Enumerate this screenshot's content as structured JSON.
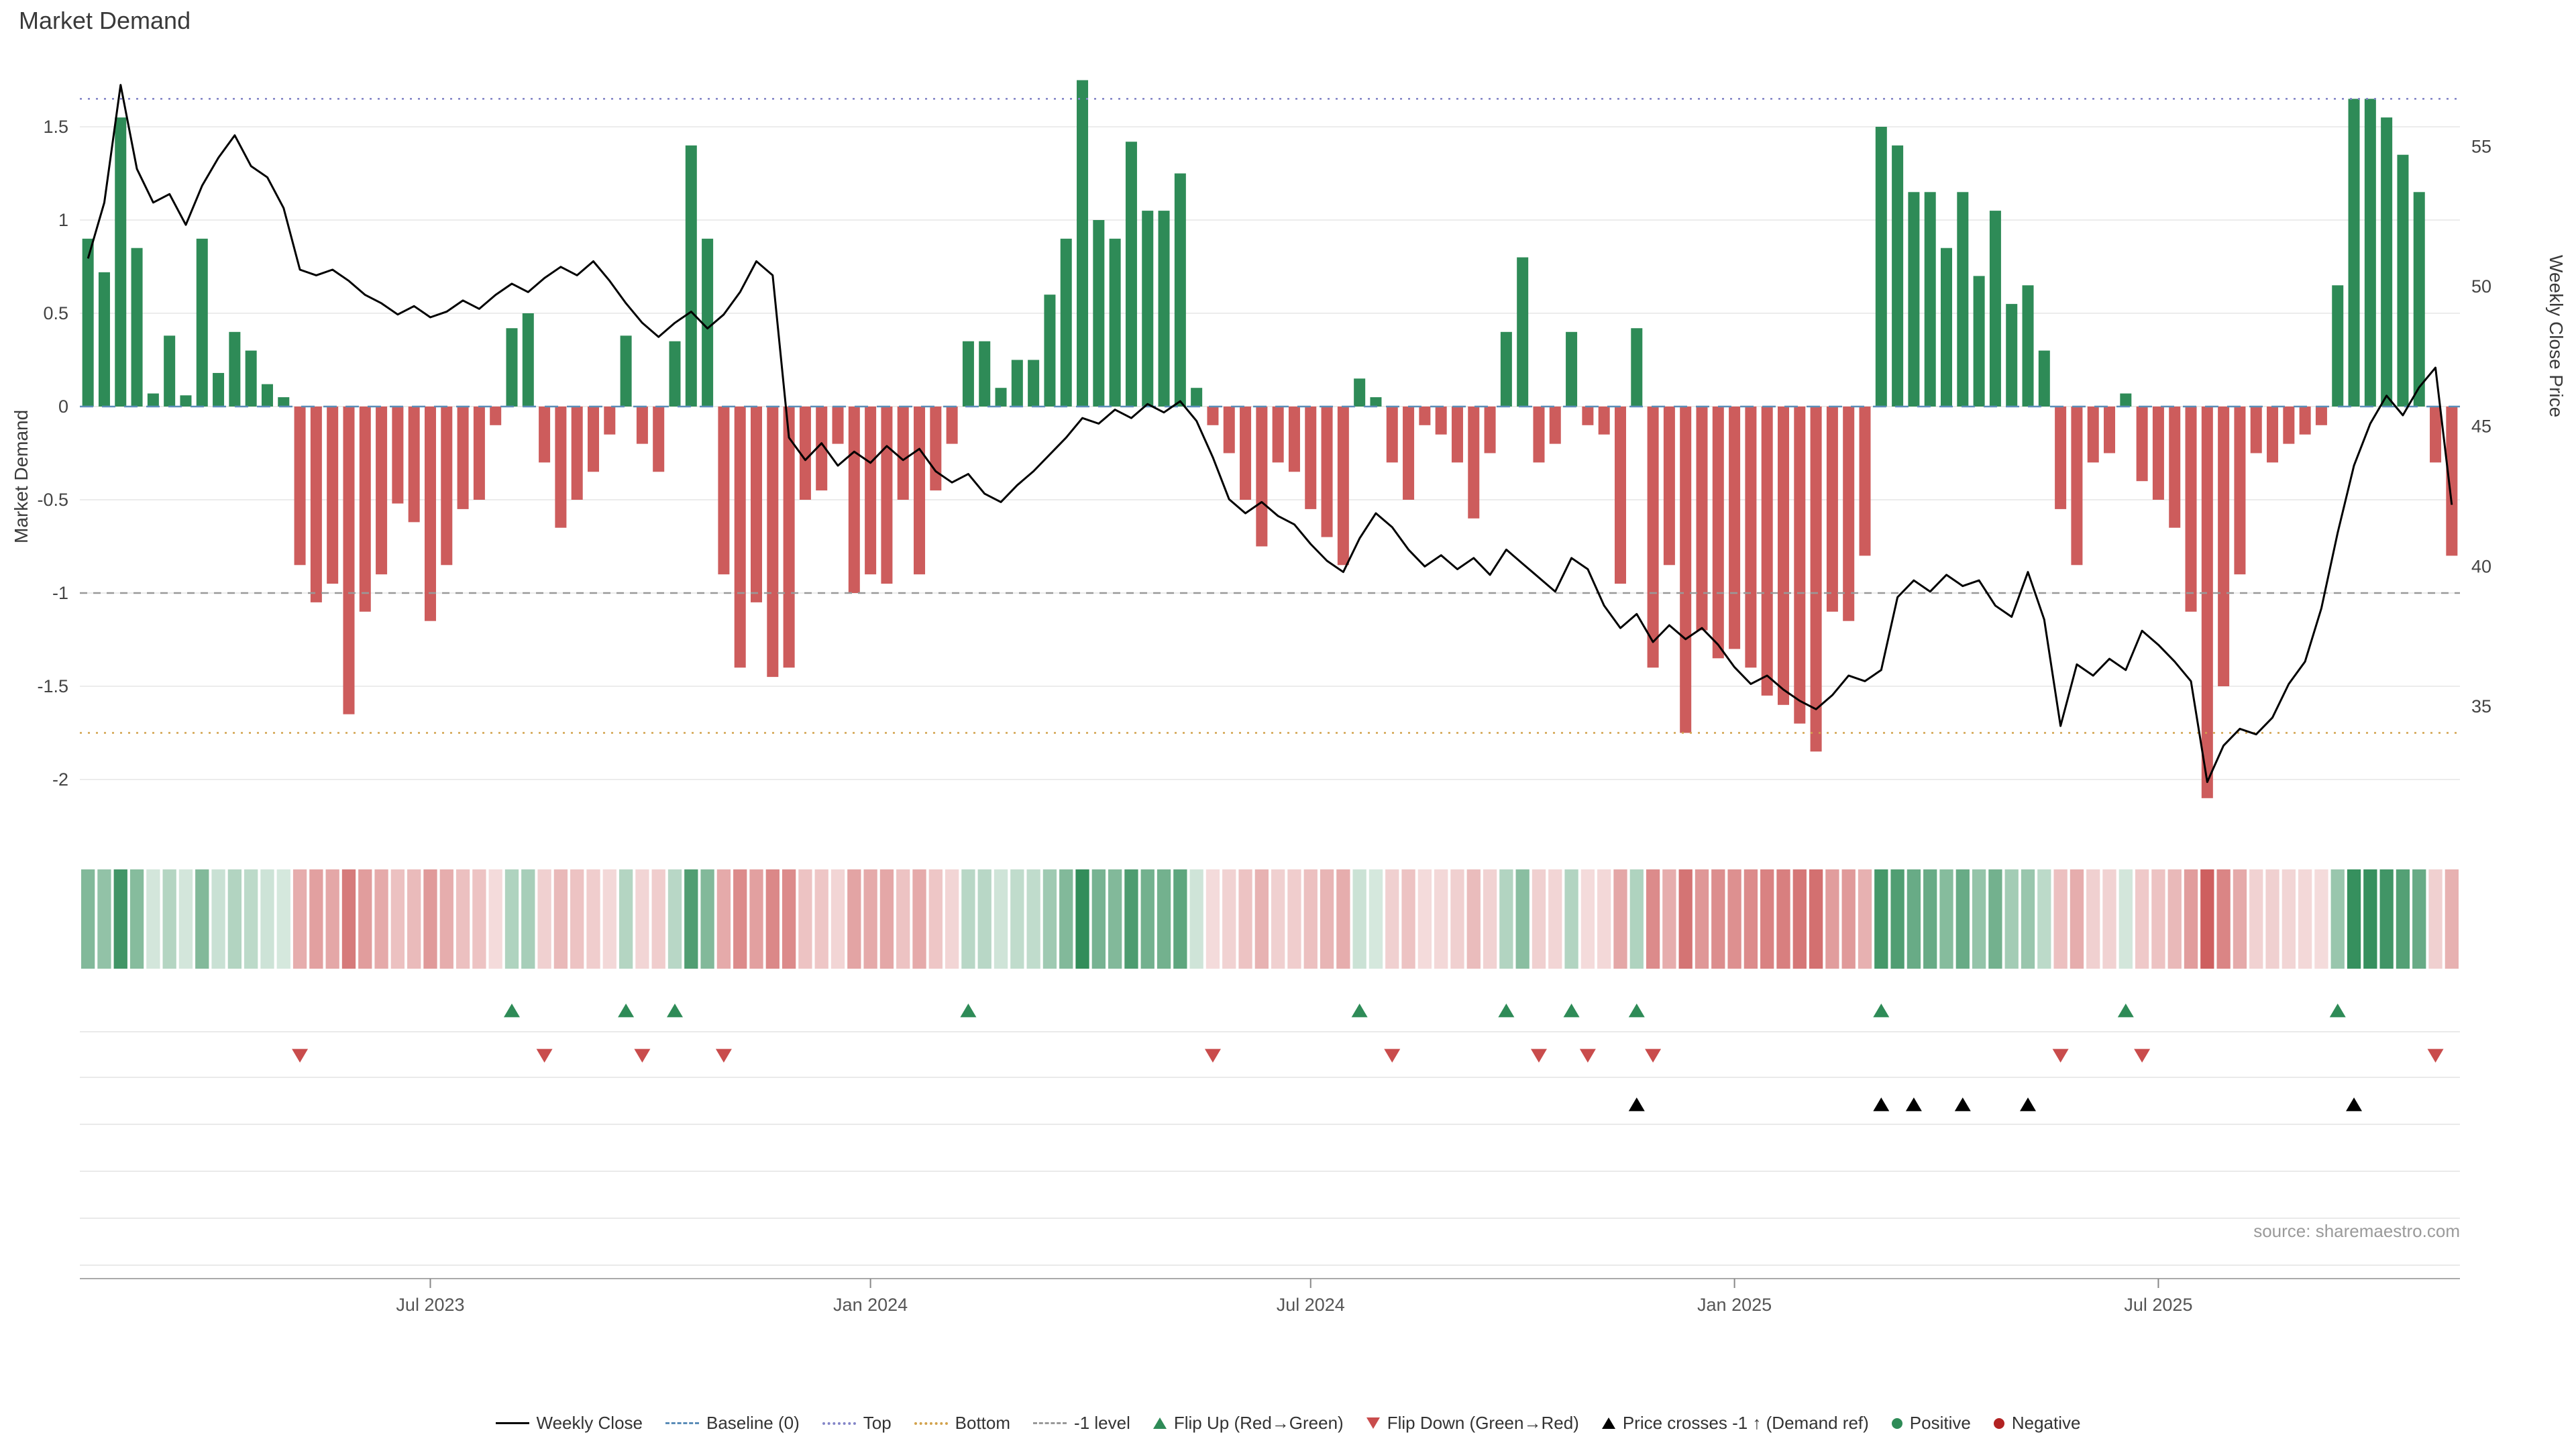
{
  "title": "Market Demand",
  "source": "source: sharemaestro.com",
  "chart_data": {
    "type": "bar",
    "title": "Market Demand",
    "left_axis": {
      "label": "Market Demand",
      "ticks": [
        {
          "label": "1.5",
          "value": 1.5
        },
        {
          "label": "1",
          "value": 1.0
        },
        {
          "label": "0.5",
          "value": 0.5
        },
        {
          "label": "0",
          "value": 0.0
        },
        {
          "label": "-0.5",
          "value": -0.5
        },
        {
          "label": "-1",
          "value": -1.0
        },
        {
          "label": "-1.5",
          "value": -1.5
        },
        {
          "label": "-2",
          "value": -2.0
        }
      ],
      "range": [
        -2.2,
        1.85
      ]
    },
    "right_axis": {
      "label": "Weekly Close Price",
      "ticks": [
        {
          "label": "55",
          "value": 55
        },
        {
          "label": "50",
          "value": 50
        },
        {
          "label": "45",
          "value": 45
        },
        {
          "label": "40",
          "value": 40
        },
        {
          "label": "35",
          "value": 35
        }
      ],
      "range": [
        31.1,
        58.0
      ]
    },
    "x_ticks": [
      {
        "label": "Jul 2023",
        "index": 21
      },
      {
        "label": "Jan 2024",
        "index": 48
      },
      {
        "label": "Jul 2024",
        "index": 75
      },
      {
        "label": "Jan 2025",
        "index": 101
      },
      {
        "label": "Jul 2025",
        "index": 127
      }
    ],
    "reference_lines": [
      {
        "name": "Baseline (0)",
        "value": 0,
        "style": "dashed",
        "color": "#5b8db8"
      },
      {
        "name": "Top",
        "value": 1.65,
        "style": "dotted",
        "color": "#8486c8"
      },
      {
        "name": "Bottom",
        "value": -1.75,
        "style": "dotted",
        "color": "#d2a24c"
      },
      {
        "name": "-1 level",
        "value": -1.0,
        "style": "dashed",
        "color": "#999999"
      }
    ],
    "series": [
      {
        "name": "Market Demand",
        "type": "bar",
        "axis": "left",
        "positive_color": "#2e8b57",
        "negative_color": "#cd5c5c",
        "values": [
          0.9,
          0.72,
          1.55,
          0.85,
          0.07,
          0.38,
          0.06,
          0.9,
          0.18,
          0.4,
          0.3,
          0.12,
          0.05,
          -0.85,
          -1.05,
          -0.95,
          -1.65,
          -1.1,
          -0.9,
          -0.52,
          -0.62,
          -1.15,
          -0.85,
          -0.55,
          -0.5,
          -0.1,
          0.42,
          0.5,
          -0.3,
          -0.65,
          -0.5,
          -0.35,
          -0.15,
          0.38,
          -0.2,
          -0.35,
          0.35,
          1.4,
          0.9,
          -0.9,
          -1.4,
          -1.05,
          -1.45,
          -1.4,
          -0.5,
          -0.45,
          -0.2,
          -1.0,
          -0.9,
          -0.95,
          -0.5,
          -0.9,
          -0.45,
          -0.2,
          0.35,
          0.35,
          0.1,
          0.25,
          0.25,
          0.6,
          0.9,
          1.75,
          1.0,
          0.9,
          1.42,
          1.05,
          1.05,
          1.25,
          0.1,
          -0.1,
          -0.25,
          -0.5,
          -0.75,
          -0.3,
          -0.35,
          -0.55,
          -0.7,
          -0.85,
          0.15,
          0.05,
          -0.3,
          -0.5,
          -0.1,
          -0.15,
          -0.3,
          -0.6,
          -0.25,
          0.4,
          0.8,
          -0.3,
          -0.2,
          0.4,
          -0.1,
          -0.15,
          -0.95,
          0.42,
          -1.4,
          -0.85,
          -1.75,
          -1.2,
          -1.35,
          -1.3,
          -1.4,
          -1.55,
          -1.6,
          -1.7,
          -1.85,
          -1.1,
          -1.15,
          -0.8,
          1.5,
          1.4,
          1.15,
          1.15,
          0.85,
          1.15,
          0.7,
          1.05,
          0.55,
          0.65,
          0.3,
          -0.55,
          -0.85,
          -0.3,
          -0.25,
          0.07,
          -0.4,
          -0.5,
          -0.65,
          -1.1,
          -2.1,
          -1.5,
          -0.9,
          -0.25,
          -0.3,
          -0.2,
          -0.15,
          -0.1,
          0.65,
          1.65,
          1.65,
          1.55,
          1.35,
          1.15,
          -0.3,
          -0.8
        ]
      },
      {
        "name": "Weekly Close",
        "type": "line",
        "axis": "right",
        "color": "#000000",
        "values": [
          51.0,
          53.0,
          57.2,
          54.2,
          53.0,
          53.3,
          52.2,
          53.6,
          54.6,
          55.4,
          54.3,
          53.9,
          52.8,
          50.6,
          50.4,
          50.6,
          50.2,
          49.7,
          49.4,
          49.0,
          49.3,
          48.9,
          49.1,
          49.5,
          49.2,
          49.7,
          50.1,
          49.8,
          50.3,
          50.7,
          50.4,
          50.9,
          50.2,
          49.4,
          48.7,
          48.2,
          48.7,
          49.1,
          48.5,
          49.0,
          49.8,
          50.9,
          50.4,
          44.6,
          43.8,
          44.4,
          43.6,
          44.1,
          43.7,
          44.3,
          43.8,
          44.2,
          43.4,
          43.0,
          43.3,
          42.6,
          42.3,
          42.9,
          43.4,
          44.0,
          44.6,
          45.3,
          45.1,
          45.6,
          45.3,
          45.8,
          45.5,
          45.9,
          45.2,
          43.9,
          42.4,
          41.9,
          42.3,
          41.8,
          41.5,
          40.8,
          40.2,
          39.8,
          41.0,
          41.9,
          41.4,
          40.6,
          40.0,
          40.4,
          39.9,
          40.3,
          39.7,
          40.6,
          40.1,
          39.6,
          39.1,
          40.3,
          39.9,
          38.6,
          37.8,
          38.3,
          37.3,
          37.9,
          37.4,
          37.8,
          37.2,
          36.4,
          35.8,
          36.1,
          35.6,
          35.2,
          34.9,
          35.4,
          36.1,
          35.9,
          36.3,
          38.9,
          39.5,
          39.1,
          39.7,
          39.3,
          39.5,
          38.6,
          38.2,
          39.8,
          38.1,
          34.3,
          36.5,
          36.1,
          36.7,
          36.3,
          37.7,
          37.2,
          36.6,
          35.9,
          32.3,
          33.6,
          34.2,
          34.0,
          34.6,
          35.8,
          36.6,
          38.5,
          41.2,
          43.6,
          45.1,
          46.1,
          45.4,
          46.4,
          47.1,
          42.2
        ]
      }
    ],
    "markers": {
      "flip_up": {
        "label": "Flip Up (Red→Green)",
        "color": "#2e8b57",
        "indices": [
          26,
          33,
          36,
          54,
          78,
          87,
          91,
          95,
          110,
          125,
          138
        ]
      },
      "flip_down": {
        "label": "Flip Down (Green→Red)",
        "color": "#c94c4c",
        "indices": [
          13,
          28,
          34,
          39,
          69,
          80,
          89,
          92,
          96,
          121,
          126,
          144
        ]
      },
      "price_cross": {
        "label": "Price crosses -1 ↑ (Demand ref)",
        "color": "#000000",
        "indices": [
          95,
          110,
          112,
          115,
          119,
          139
        ]
      }
    },
    "heatmap": {
      "description": "weekly demand intensity strip, shade scales with bar magnitude",
      "positive_color": "#2e8b57",
      "negative_color": "#cd5c5c"
    }
  },
  "legend": {
    "items": [
      {
        "glyph": "line",
        "color": "#000000",
        "label": "Weekly Close"
      },
      {
        "glyph": "dashes",
        "color": "#5b8db8",
        "label": "Baseline (0)"
      },
      {
        "glyph": "dots",
        "color": "#8486c8",
        "label": "Top"
      },
      {
        "glyph": "dots",
        "color": "#d2a24c",
        "label": "Bottom"
      },
      {
        "glyph": "dashes",
        "color": "#999999",
        "label": "-1 level"
      },
      {
        "glyph": "triangle-up",
        "color": "#2e8b57",
        "label": "Flip Up (Red→Green)"
      },
      {
        "glyph": "triangle-down",
        "color": "#c94c4c",
        "label": "Flip Down (Green→Red)"
      },
      {
        "glyph": "triangle-up",
        "color": "#000000",
        "label": "Price crosses -1 ↑ (Demand ref)"
      },
      {
        "glyph": "dot",
        "color": "#2e8b57",
        "label": "Positive"
      },
      {
        "glyph": "dot",
        "color": "#b22222",
        "label": "Negative"
      }
    ]
  }
}
